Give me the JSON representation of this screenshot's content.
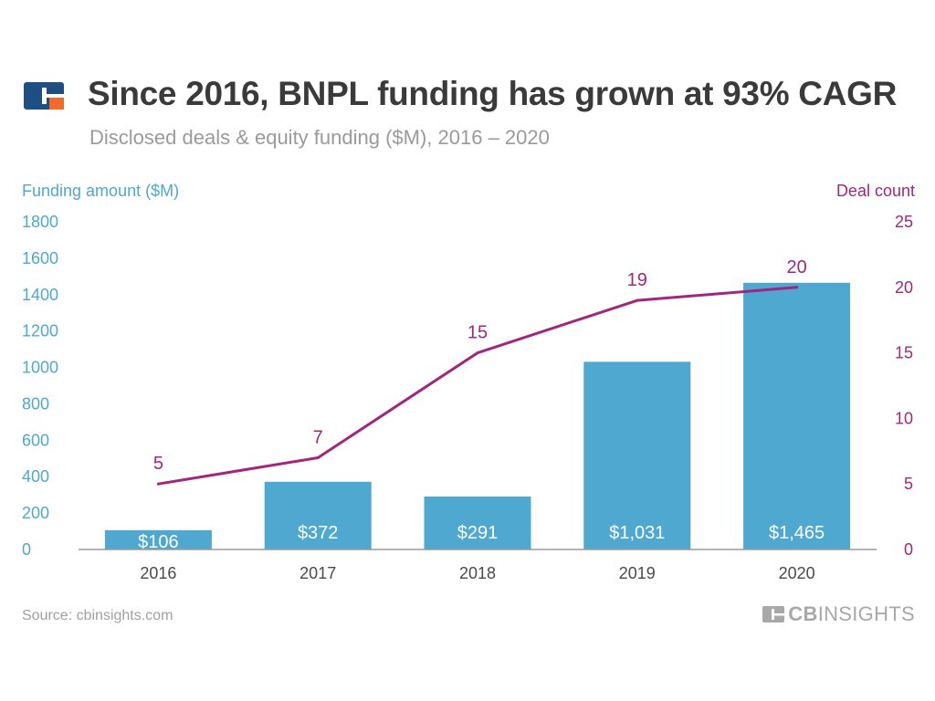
{
  "header": {
    "title": "Since 2016, BNPL funding has grown at 93% CAGR",
    "subtitle": "Disclosed deals & equity funding ($M), 2016 – 2020"
  },
  "colors": {
    "bar": "#4ea8cf",
    "line": "#a1267d",
    "left_axis": "#4ea8cf",
    "right_axis": "#a1267d",
    "title": "#3a3a3a",
    "brand_blue": "#1f4f82",
    "brand_orange": "#f26b2b"
  },
  "chart_data": {
    "type": "bar",
    "categories": [
      "2016",
      "2017",
      "2018",
      "2019",
      "2020"
    ],
    "series": [
      {
        "type": "bar",
        "axis": "left",
        "values": [
          106,
          372,
          291,
          1031,
          1465
        ],
        "labels": [
          "$106",
          "$372",
          "$291",
          "$1,031",
          "$1,465"
        ]
      },
      {
        "type": "line",
        "axis": "right",
        "values": [
          5,
          7,
          15,
          19,
          20
        ],
        "labels": [
          "5",
          "7",
          "15",
          "19",
          "20"
        ]
      }
    ],
    "ylabel_left": "Funding amount ($M)",
    "ylabel_right": "Deal count",
    "ylim_left": [
      0,
      1800
    ],
    "ylim_right": [
      0,
      25
    ],
    "yticks_left": [
      "0",
      "200",
      "400",
      "600",
      "800",
      "1000",
      "1200",
      "1400",
      "1600",
      "1800"
    ],
    "yticks_right": [
      "0",
      "5",
      "10",
      "15",
      "20",
      "25"
    ],
    "grid": false
  },
  "footer": {
    "source": "Source: cbinsights.com",
    "brand_bold": "CB",
    "brand_rest": "INSIGHTS"
  }
}
